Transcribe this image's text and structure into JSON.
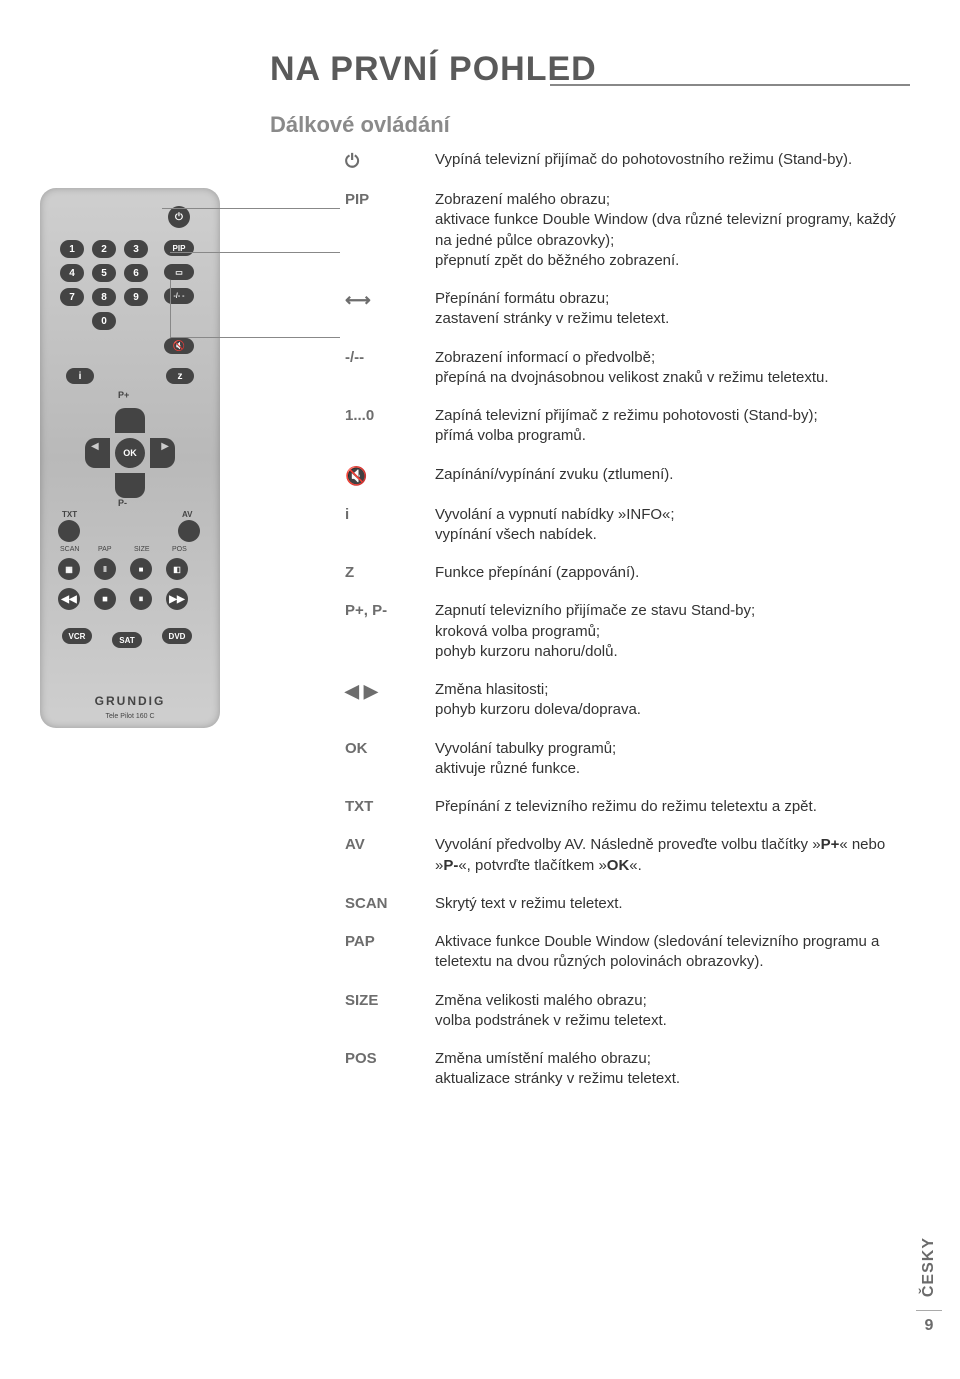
{
  "page_title": "NA PRVNÍ POHLED",
  "subtitle": "Dálkové ovládání",
  "remote": {
    "brand": "GRUNDIG",
    "model": "Tele Pilot 160 C",
    "num_buttons": [
      "1",
      "2",
      "3",
      "4",
      "5",
      "6",
      "7",
      "8",
      "9",
      "0"
    ],
    "side_buttons_top": [
      "PIP",
      "▭",
      "-/- -"
    ],
    "i_btn": "i",
    "z_btn": "z",
    "ok": "OK",
    "p_plus": "P+",
    "p_minus": "P-",
    "txt": "TXT",
    "av": "AV",
    "row_btns": [
      "SCAN",
      "PAP",
      "SIZE",
      "POS"
    ],
    "bottom_btns": [
      "VCR",
      "SAT",
      "DVD"
    ]
  },
  "items": [
    {
      "key_type": "icon",
      "key": "⏻",
      "text": "Vypíná televizní přijímač do pohotovostního režimu (Stand-by)."
    },
    {
      "key_type": "text",
      "key": "PIP",
      "text": "Zobrazení malého obrazu;\naktivace funkce Double Window (dva různé televizní programy, každý na jedné půlce obrazovky);\npřepnutí zpět do běžného zobrazení."
    },
    {
      "key_type": "icon",
      "key": "⟷",
      "text": "Přepínání formátu obrazu;\nzastavení stránky v režimu teletext."
    },
    {
      "key_type": "text",
      "key": "-/--",
      "text": "Zobrazení informací o předvolbě;\npřepíná na dvojnásobnou velikost znaků v režimu teletextu."
    },
    {
      "key_type": "text",
      "key": "1...0",
      "text": "Zapíná televizní přijímač z režimu pohotovosti (Stand-by);\npřímá volba programů."
    },
    {
      "key_type": "icon",
      "key": "🔇",
      "text": "Zapínání/vypínání zvuku (ztlumení)."
    },
    {
      "key_type": "text",
      "key": "i",
      "text": "Vyvolání a vypnutí nabídky »INFO«;\nvypínání všech nabídek."
    },
    {
      "key_type": "text",
      "key": "Z",
      "text": "Funkce přepínání (zappování)."
    },
    {
      "key_type": "text",
      "key": "P+, P-",
      "text": "Zapnutí televizního přijímače ze stavu Stand-by;\nkroková volba programů;\npohyb kurzoru nahoru/dolů."
    },
    {
      "key_type": "icon",
      "key": "◀  ▶",
      "text": "Změna hlasitosti;\npohyb kurzoru doleva/doprava."
    },
    {
      "key_type": "text",
      "key": "OK",
      "text": "Vyvolání tabulky programů;\naktivuje různé funkce."
    },
    {
      "key_type": "text",
      "key": "TXT",
      "text": "Přepínání z televizního režimu do režimu teletextu a zpět."
    },
    {
      "key_type": "text",
      "key": "AV",
      "text": "Vyvolání předvolby AV. Následně proveďte volbu tlačítky »P+« nebo »P-«, potvrďte tlačítkem »OK«."
    },
    {
      "key_type": "text",
      "key": "SCAN",
      "text": "Skrytý text v režimu teletext."
    },
    {
      "key_type": "text",
      "key": "PAP",
      "text": "Aktivace funkce Double Window (sledování televizního programu a teletextu na dvou různých polovinách obrazovky)."
    },
    {
      "key_type": "text",
      "key": "SIZE",
      "text": "Změna velikosti malého obrazu;\nvolba podstránek v režimu teletext."
    },
    {
      "key_type": "text",
      "key": "POS",
      "text": "Změna umístění malého obrazu;\naktualizace stránky v režimu teletext."
    }
  ],
  "av_bold": [
    "P+",
    "P-",
    "OK"
  ],
  "side_tab": {
    "lang": "ČESKY",
    "page": "9"
  },
  "colors": {
    "title": "#5a5a5a",
    "subtitle": "#8a8a8a",
    "key": "#6d6d6d",
    "text": "#333333",
    "remote_body": "#c5c5c5",
    "remote_btn": "#444444"
  }
}
